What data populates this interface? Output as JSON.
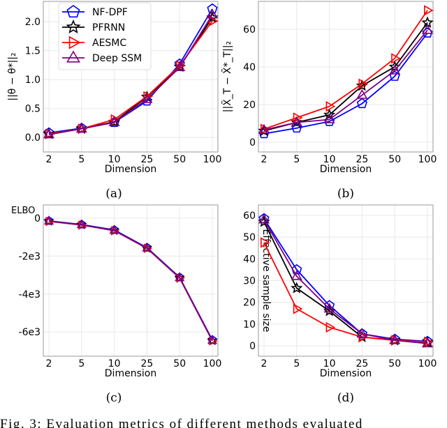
{
  "series_style": [
    {
      "name": "NF-DPF",
      "color": "#0000ff",
      "marker": "pentagon"
    },
    {
      "name": "PFRNN",
      "color": "#000000",
      "marker": "star"
    },
    {
      "name": "AESMC",
      "color": "#ff0000",
      "marker": "triangle-right"
    },
    {
      "name": "Deep SSM",
      "color": "#800080",
      "marker": "triangle-up"
    }
  ],
  "chart_data": [
    {
      "id": "a",
      "type": "line",
      "caption": "(a)",
      "xlabel": "Dimension",
      "ylabel": "||θ − θ*||₂",
      "categories": [
        "2",
        "5",
        "10",
        "25",
        "50",
        "100"
      ],
      "ylim": [
        -0.25,
        2.35
      ],
      "yticks": [
        0,
        0.5,
        1,
        1.5,
        2
      ],
      "ytick_labels": [
        "0.0",
        "0.5",
        "1.0",
        "1.5",
        "2.0"
      ],
      "grid": true,
      "legend": "top-left",
      "series": [
        {
          "name": "NF-DPF",
          "values": [
            0.08,
            0.16,
            0.26,
            0.63,
            1.27,
            2.22
          ]
        },
        {
          "name": "PFRNN",
          "values": [
            0.06,
            0.15,
            0.27,
            0.7,
            1.22,
            2.07
          ]
        },
        {
          "name": "AESMC",
          "values": [
            0.06,
            0.15,
            0.31,
            0.71,
            1.24,
            2.01
          ]
        },
        {
          "name": "Deep SSM",
          "values": [
            0.05,
            0.15,
            0.26,
            0.66,
            1.21,
            2.12
          ]
        }
      ]
    },
    {
      "id": "b",
      "type": "line",
      "caption": "(b)",
      "xlabel": "Dimension",
      "ylabel": "||X̃_T − X̃*_T||₂",
      "categories": [
        "2",
        "5",
        "10",
        "25",
        "50",
        "100"
      ],
      "ylim": [
        -5.2,
        74.8
      ],
      "yticks": [
        0,
        20,
        40,
        60
      ],
      "ytick_labels": [
        "0",
        "20",
        "40",
        "60"
      ],
      "grid": true,
      "series": [
        {
          "name": "NF-DPF",
          "values": [
            4.5,
            7.5,
            11,
            20.5,
            35,
            58
          ]
        },
        {
          "name": "PFRNN",
          "values": [
            6,
            10.5,
            14.5,
            30,
            40,
            63.5
          ]
        },
        {
          "name": "AESMC",
          "values": [
            7,
            13,
            19,
            31,
            44.5,
            70
          ]
        },
        {
          "name": "Deep SSM",
          "values": [
            6.5,
            10.5,
            12,
            25,
            38,
            59.5
          ]
        }
      ]
    },
    {
      "id": "c",
      "type": "line",
      "caption": "(c)",
      "xlabel": "Dimension",
      "ylabel": "ELBO",
      "categories": [
        "2",
        "5",
        "10",
        "25",
        "50",
        "100"
      ],
      "ylim": [
        -7280,
        700
      ],
      "yticks": [
        0,
        -2000,
        -4000,
        -6000
      ],
      "ytick_labels": [
        "0",
        "-2e3",
        "-4e3",
        "-6e3"
      ],
      "grid": true,
      "series": [
        {
          "name": "NF-DPF",
          "values": [
            -140,
            -330,
            -620,
            -1550,
            -3120,
            -6420
          ]
        },
        {
          "name": "PFRNN",
          "values": [
            -160,
            -350,
            -650,
            -1580,
            -3150,
            -6460
          ]
        },
        {
          "name": "AESMC",
          "values": [
            -170,
            -360,
            -660,
            -1590,
            -3160,
            -6470
          ]
        },
        {
          "name": "Deep SSM",
          "values": [
            -160,
            -350,
            -650,
            -1580,
            -3150,
            -6460
          ]
        }
      ]
    },
    {
      "id": "d",
      "type": "line",
      "caption": "(d)",
      "xlabel": "Dimension",
      "ylabel": "Effective sample size",
      "categories": [
        "2",
        "5",
        "10",
        "25",
        "50",
        "100"
      ],
      "ylim": [
        -4.8,
        64.8
      ],
      "yticks": [
        0,
        10,
        20,
        30,
        40,
        50,
        60
      ],
      "ytick_labels": [
        "0",
        "10",
        "20",
        "30",
        "40",
        "50",
        "60"
      ],
      "grid": true,
      "series": [
        {
          "name": "NF-DPF",
          "values": [
            58.5,
            35,
            18.5,
            5.5,
            3,
            2
          ]
        },
        {
          "name": "PFRNN",
          "values": [
            57,
            26.5,
            16,
            4,
            2.5,
            1.5
          ]
        },
        {
          "name": "AESMC",
          "values": [
            47.5,
            17,
            8.5,
            4,
            2.5,
            1.8
          ]
        },
        {
          "name": "Deep SSM",
          "values": [
            58,
            32,
            17,
            5.5,
            2.5,
            1
          ]
        }
      ]
    }
  ],
  "figure_caption": "Fig. 3: Evaluation metrics of different methods evaluated"
}
